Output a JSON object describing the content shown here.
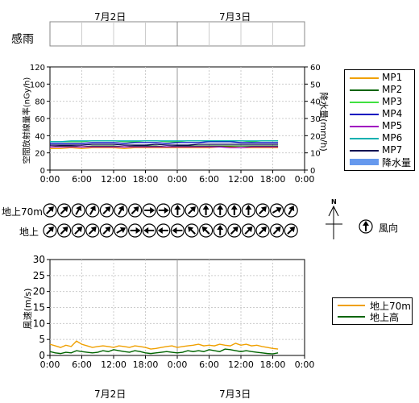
{
  "dates_top": [
    "7月2日",
    "7月3日"
  ],
  "dates_bottom": [
    "7月2日",
    "7月3日"
  ],
  "time_ticks": [
    "0:00",
    "6:00",
    "12:00",
    "18:00",
    "0:00",
    "6:00",
    "12:00",
    "18:00",
    "0:00"
  ],
  "rain_sense_label": "感雨",
  "dose_chart": {
    "ylabel_left": "空間放射線量率(nGy/h)",
    "ylabel_right": "降水量(mm/h)",
    "left_ticks": [
      0,
      20,
      40,
      60,
      80,
      100,
      120
    ],
    "right_ticks": [
      0,
      10,
      20,
      30,
      40,
      50,
      60
    ],
    "legend": [
      "MP1",
      "MP2",
      "MP3",
      "MP4",
      "MP5",
      "MP6",
      "MP7",
      "降水量"
    ],
    "colors": [
      "#f0a000",
      "#006400",
      "#40e040",
      "#0000c0",
      "#a000c0",
      "#00b0b0",
      "#000050",
      "#6699ee"
    ]
  },
  "wind_dir": {
    "row_labels": [
      "地上70m",
      "地上"
    ],
    "legend_label": "風向",
    "compass_letter": "N",
    "row1_angles": [
      45,
      45,
      30,
      30,
      45,
      30,
      45,
      90,
      90,
      0,
      45,
      0,
      0,
      0,
      0,
      45,
      60,
      30
    ],
    "row2_angles": [
      45,
      45,
      45,
      45,
      45,
      60,
      90,
      270,
      270,
      270,
      315,
      315,
      0,
      45,
      45,
      45,
      45,
      45
    ]
  },
  "chart_data": [
    {
      "type": "line",
      "title": "",
      "xlabel": "",
      "ylabel": "空間放射線量率(nGy/h)",
      "ylabel_right": "降水量(mm/h)",
      "ylim": [
        0,
        120
      ],
      "ylim_right": [
        0,
        60
      ],
      "x_ticks": [
        "0:00",
        "6:00",
        "12:00",
        "18:00",
        "0:00",
        "6:00",
        "12:00",
        "18:00",
        "0:00"
      ],
      "x": [
        0,
        2,
        4,
        6,
        8,
        10,
        12,
        14,
        16,
        18,
        20,
        22,
        24,
        26,
        28,
        30,
        32,
        34,
        36,
        38,
        40,
        42,
        43
      ],
      "series": [
        {
          "name": "MP1",
          "values": [
            25,
            25,
            26,
            25,
            26,
            26,
            26,
            25,
            26,
            26,
            26,
            26,
            26,
            26,
            26,
            26,
            27,
            27,
            26,
            26,
            26,
            26,
            26
          ]
        },
        {
          "name": "MP2",
          "values": [
            27,
            28,
            28,
            27,
            28,
            28,
            28,
            27,
            28,
            28,
            28,
            27,
            28,
            28,
            28,
            28,
            28,
            28,
            28,
            28,
            28,
            28,
            28
          ]
        },
        {
          "name": "MP3",
          "values": [
            33,
            33,
            33,
            33,
            34,
            34,
            34,
            33,
            33,
            34,
            34,
            33,
            33,
            34,
            34,
            34,
            34,
            34,
            34,
            33,
            34,
            34,
            34
          ]
        },
        {
          "name": "MP4",
          "values": [
            31,
            31,
            31,
            31,
            32,
            32,
            32,
            31,
            32,
            32,
            32,
            31,
            32,
            32,
            32,
            33,
            33,
            33,
            32,
            32,
            32,
            32,
            32
          ]
        },
        {
          "name": "MP5",
          "values": [
            27,
            27,
            27,
            27,
            27,
            27,
            27,
            27,
            27,
            27,
            27,
            27,
            27,
            27,
            27,
            27,
            27,
            26,
            26,
            27,
            27,
            27,
            27
          ]
        },
        {
          "name": "MP6",
          "values": [
            33,
            33,
            34,
            34,
            34,
            34,
            34,
            34,
            34,
            34,
            34,
            34,
            34,
            34,
            34,
            34,
            34,
            34,
            34,
            34,
            34,
            34,
            34
          ]
        },
        {
          "name": "MP7",
          "values": [
            29,
            29,
            29,
            29,
            30,
            30,
            30,
            29,
            29,
            29,
            30,
            29,
            29,
            29,
            30,
            30,
            30,
            30,
            30,
            30,
            30,
            30,
            30
          ]
        }
      ]
    },
    {
      "type": "line",
      "title": "",
      "xlabel": "",
      "ylabel": "風速(m/s)",
      "ylim": [
        0,
        30
      ],
      "y_ticks": [
        0,
        5,
        10,
        15,
        20,
        25,
        30
      ],
      "x_ticks": [
        "0:00",
        "6:00",
        "12:00",
        "18:00",
        "0:00",
        "6:00",
        "12:00",
        "18:00",
        "0:00"
      ],
      "x": [
        0,
        1,
        2,
        3,
        4,
        5,
        6,
        7,
        8,
        9,
        10,
        11,
        12,
        13,
        14,
        15,
        16,
        17,
        18,
        19,
        20,
        21,
        22,
        23,
        24,
        25,
        26,
        27,
        28,
        29,
        30,
        31,
        32,
        33,
        34,
        35,
        36,
        37,
        38,
        39,
        40,
        41,
        42,
        43
      ],
      "series": [
        {
          "name": "地上70m",
          "values": [
            3.5,
            3.0,
            2.5,
            3.2,
            2.8,
            4.5,
            3.5,
            3.0,
            2.5,
            2.8,
            3.0,
            2.8,
            2.5,
            3.0,
            2.8,
            2.5,
            3.0,
            2.8,
            2.5,
            2.0,
            2.2,
            2.5,
            2.8,
            3.0,
            2.5,
            2.8,
            3.0,
            3.2,
            3.5,
            3.0,
            3.2,
            3.0,
            3.5,
            3.2,
            3.0,
            3.8,
            3.2,
            3.5,
            3.0,
            3.2,
            2.8,
            2.5,
            2.2,
            2.0
          ]
        },
        {
          "name": "地上高",
          "values": [
            1.2,
            0.8,
            0.6,
            1.0,
            0.8,
            1.5,
            1.2,
            1.0,
            0.8,
            1.0,
            1.5,
            1.2,
            1.8,
            1.5,
            1.2,
            1.0,
            1.5,
            1.2,
            0.8,
            0.6,
            0.8,
            1.0,
            1.2,
            1.0,
            0.8,
            1.0,
            1.5,
            1.2,
            1.5,
            1.2,
            1.8,
            1.5,
            1.2,
            2.0,
            1.8,
            1.5,
            1.2,
            1.5,
            1.2,
            1.0,
            0.8,
            0.6,
            0.5,
            0.8
          ]
        }
      ]
    }
  ]
}
